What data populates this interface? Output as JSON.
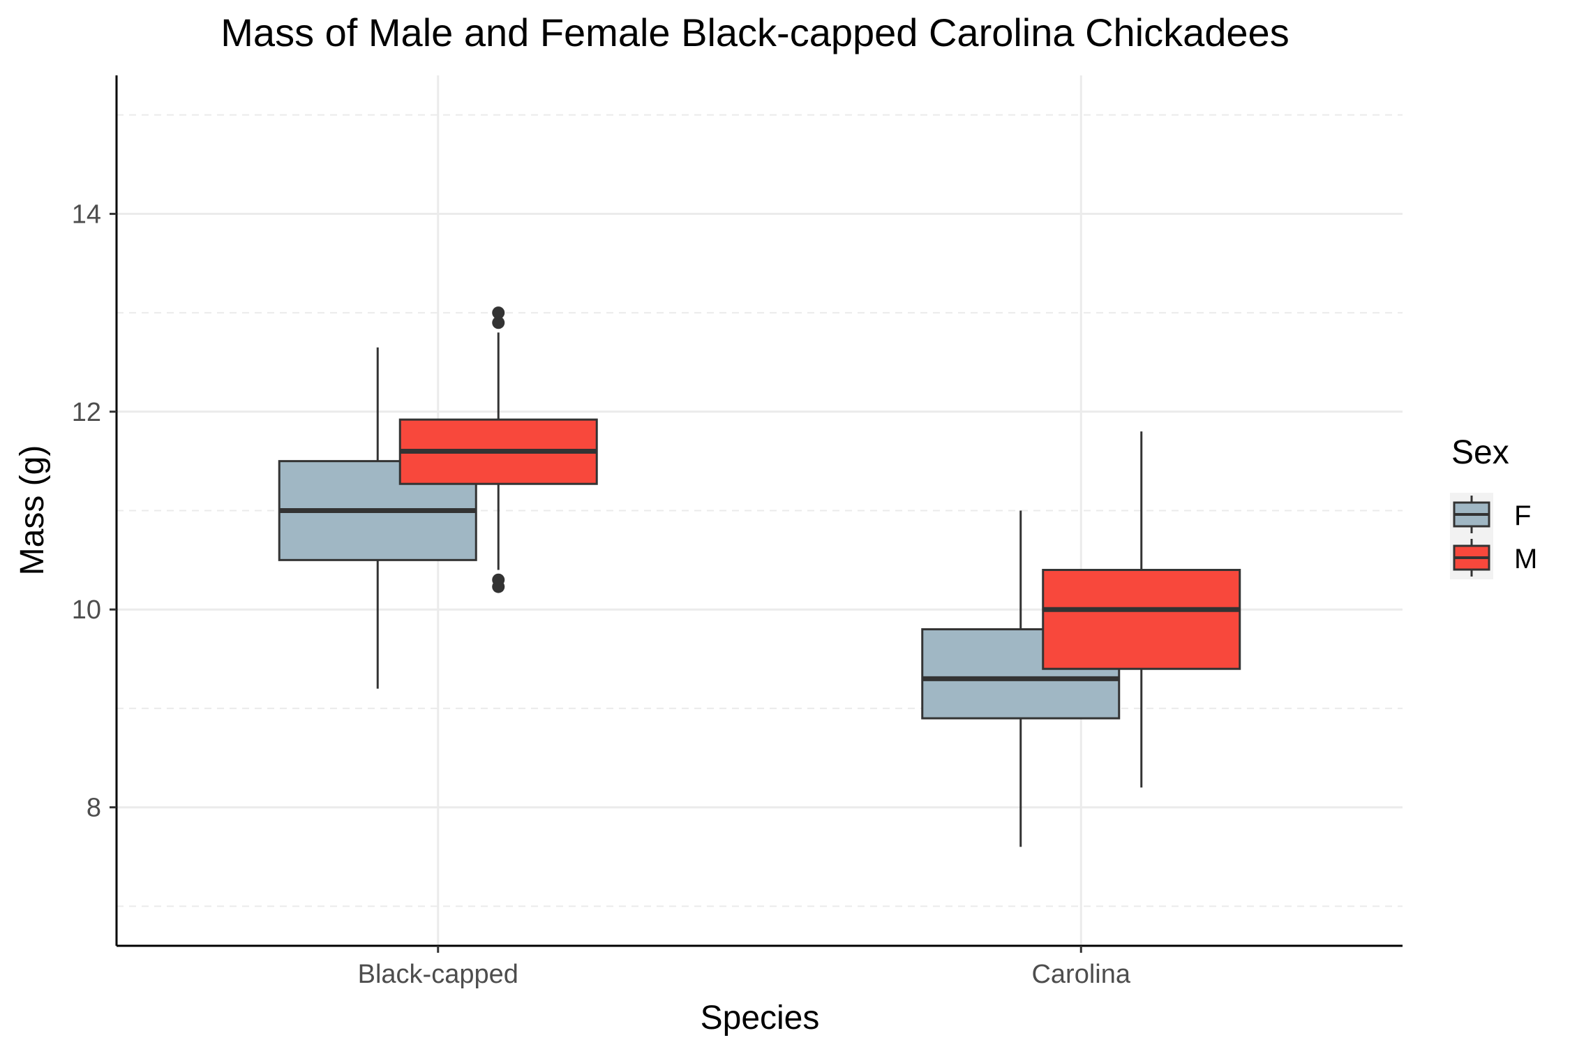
{
  "chart_data": {
    "type": "boxplot",
    "title": "Mass of Male and Female Black-capped Carolina Chickadees",
    "xlabel": "Species",
    "ylabel": "Mass (g)",
    "ylim": [
      6.6,
      15.4
    ],
    "yticks": [
      8,
      10,
      12,
      14
    ],
    "minor_gridlines": [
      7,
      9,
      11,
      13,
      15
    ],
    "grid": "major solid, minor dashed",
    "categories": [
      "Black-capped",
      "Carolina"
    ],
    "legend": {
      "title": "Sex",
      "position": "right"
    },
    "series": [
      {
        "name": "F",
        "color": "#a0b7c4",
        "boxes": [
          {
            "category": "Black-capped",
            "whisker_low": 9.2,
            "q1": 10.5,
            "median": 11.0,
            "q3": 11.5,
            "whisker_high": 12.65,
            "outliers": []
          },
          {
            "category": "Carolina",
            "whisker_low": 7.6,
            "q1": 8.9,
            "median": 9.3,
            "q3": 9.8,
            "whisker_high": 11.0,
            "outliers": []
          }
        ]
      },
      {
        "name": "M",
        "color": "#f8483c",
        "boxes": [
          {
            "category": "Black-capped",
            "whisker_low": 10.4,
            "q1": 11.27,
            "median": 11.6,
            "q3": 11.92,
            "whisker_high": 12.8,
            "outliers": [
              10.23,
              10.3,
              12.9,
              13.0
            ]
          },
          {
            "category": "Carolina",
            "whisker_low": 8.2,
            "q1": 9.4,
            "median": 10.0,
            "q3": 10.4,
            "whisker_high": 11.8,
            "outliers": []
          }
        ]
      }
    ]
  }
}
